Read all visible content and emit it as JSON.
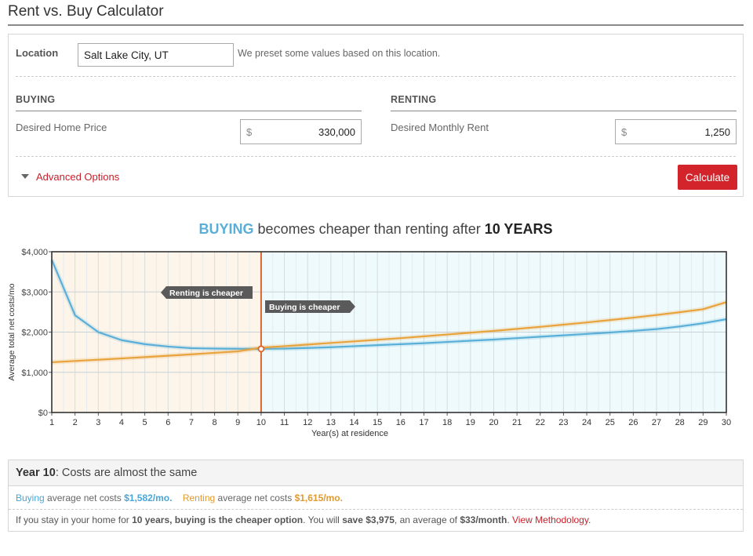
{
  "page_title": "Rent vs. Buy Calculator",
  "location": {
    "label": "Location",
    "value": "Salt Lake City, UT",
    "note": "We preset some values based on this location."
  },
  "buying": {
    "heading": "BUYING",
    "field_label": "Desired Home Price",
    "currency": "$",
    "value": "330,000"
  },
  "renting": {
    "heading": "RENTING",
    "field_label": "Desired Monthly Rent",
    "currency": "$",
    "value": "1,250"
  },
  "advanced_options_label": "Advanced Options",
  "calculate_label": "Calculate",
  "headline": {
    "part1": "BUYING",
    "part2": " becomes cheaper than renting after ",
    "part3": "10 YEARS"
  },
  "colors": {
    "buy": "#5aafd9",
    "rent": "#e8a33d",
    "breakeven_line": "#d9662e",
    "rent_zone": "#fdf5e9",
    "buy_zone": "#eefafc",
    "accent_red": "#d3242c"
  },
  "chart_data": {
    "type": "line",
    "xlabel": "Year(s) at residence",
    "ylabel": "Average total net costs/mo",
    "x": [
      1,
      2,
      3,
      4,
      5,
      6,
      7,
      8,
      9,
      10,
      11,
      12,
      13,
      14,
      15,
      16,
      17,
      18,
      19,
      20,
      21,
      22,
      23,
      24,
      25,
      26,
      27,
      28,
      29,
      30
    ],
    "xlim": [
      1,
      30
    ],
    "ylim": [
      0,
      4000
    ],
    "yticks": [
      "$0",
      "$1,000",
      "$2,000",
      "$3,000",
      "$4,000"
    ],
    "grid": true,
    "series": [
      {
        "name": "Buying",
        "values": [
          3800,
          2420,
          2000,
          1800,
          1700,
          1640,
          1600,
          1590,
          1585,
          1582,
          1590,
          1605,
          1625,
          1650,
          1675,
          1700,
          1725,
          1755,
          1785,
          1815,
          1850,
          1885,
          1920,
          1955,
          1990,
          2030,
          2075,
          2140,
          2220,
          2320
        ]
      },
      {
        "name": "Renting",
        "values": [
          1250,
          1282,
          1313,
          1345,
          1378,
          1412,
          1447,
          1484,
          1521,
          1615,
          1650,
          1690,
          1730,
          1770,
          1810,
          1850,
          1895,
          1940,
          1985,
          2030,
          2080,
          2130,
          2185,
          2240,
          2300,
          2360,
          2425,
          2495,
          2570,
          2745
        ]
      }
    ],
    "breakeven_year": 10,
    "annotations": [
      "Renting is cheaper",
      "Buying is cheaper"
    ]
  },
  "summary": {
    "year_label": "Year 10",
    "year_text": ": Costs are almost the same",
    "buying_word": "Buying",
    "buying_text": " average net costs ",
    "buying_amount": "$1,582/mo.",
    "renting_word": "Renting",
    "renting_text": " average net costs ",
    "renting_amount": "$1,615/mo.",
    "detail_a": "If you stay in your home for ",
    "detail_b": "10 years, buying is the cheaper option",
    "detail_c": ". You will ",
    "detail_d": "save $3,975",
    "detail_e": ", an average of ",
    "detail_f": "$33/month",
    "detail_g": ". ",
    "methodology_link": "View Methodology",
    "detail_h": "."
  }
}
